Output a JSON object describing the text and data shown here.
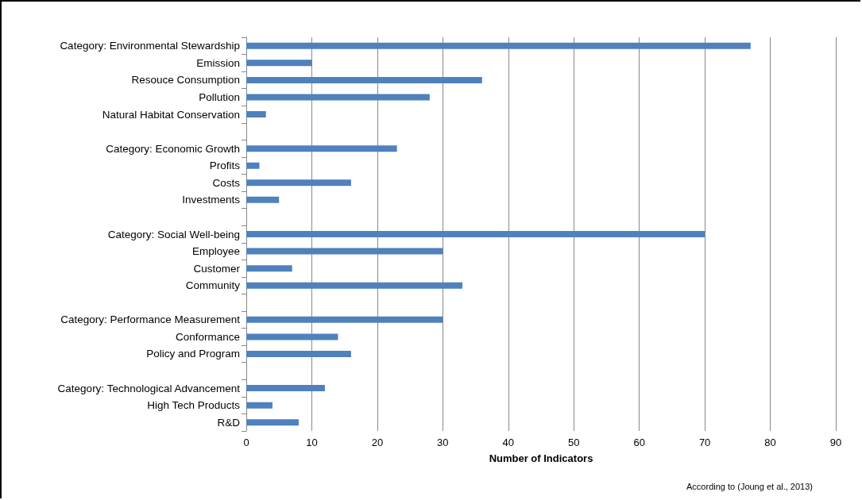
{
  "chart_data": {
    "type": "bar",
    "orientation": "horizontal",
    "xlabel": "Number of Indicators",
    "categories": [
      "Category: Environmental Stewardship",
      "Emission",
      "Resouce Consumption",
      "Pollution",
      "Natural Habitat Conservation",
      null,
      "Category: Economic Growth",
      "Profits",
      "Costs",
      "Investments",
      null,
      "Category: Social Well-being",
      "Employee",
      "Customer",
      "Community",
      null,
      "Category: Performance Measurement",
      "Conformance",
      "Policy and Program",
      null,
      "Category: Technological Advancement",
      "High Tech Products",
      "R&D"
    ],
    "values": [
      77,
      10,
      36,
      28,
      3,
      null,
      23,
      2,
      16,
      5,
      null,
      70,
      30,
      7,
      33,
      null,
      30,
      14,
      16,
      null,
      12,
      4,
      8
    ],
    "color": "#4f81bd",
    "xlim": [
      0,
      90
    ],
    "xticks": [
      0,
      10,
      20,
      30,
      40,
      50,
      60,
      70,
      80,
      90
    ],
    "grid": "x",
    "annotations": [
      "According to (Joung et al., 2013)"
    ]
  }
}
